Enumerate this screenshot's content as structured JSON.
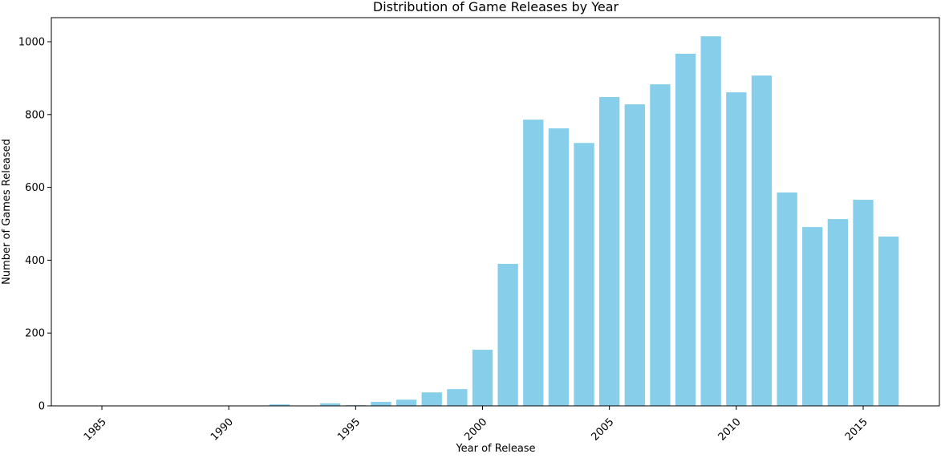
{
  "chart_data": {
    "type": "bar",
    "title": "Distribution of Game Releases by Year",
    "xlabel": "Year of Release",
    "ylabel": "Number of Games Released",
    "categories": [
      1985,
      1988,
      1992,
      1994,
      1995,
      1996,
      1997,
      1998,
      1999,
      2000,
      2001,
      2002,
      2003,
      2004,
      2005,
      2006,
      2007,
      2008,
      2009,
      2010,
      2011,
      2012,
      2013,
      2014,
      2015,
      2016
    ],
    "values": [
      1,
      1,
      4,
      7,
      2,
      11,
      17,
      37,
      46,
      154,
      390,
      786,
      762,
      722,
      848,
      828,
      883,
      967,
      1015,
      861,
      907,
      586,
      491,
      513,
      566,
      465
    ],
    "xlim": [
      1983,
      2018
    ],
    "ylim": [
      0,
      1065
    ],
    "xticks": [
      1985,
      1990,
      1995,
      2000,
      2005,
      2010,
      2015
    ],
    "yticks": [
      0,
      200,
      400,
      600,
      800,
      1000
    ],
    "bar_color": "#87CEEB",
    "grid": false
  }
}
